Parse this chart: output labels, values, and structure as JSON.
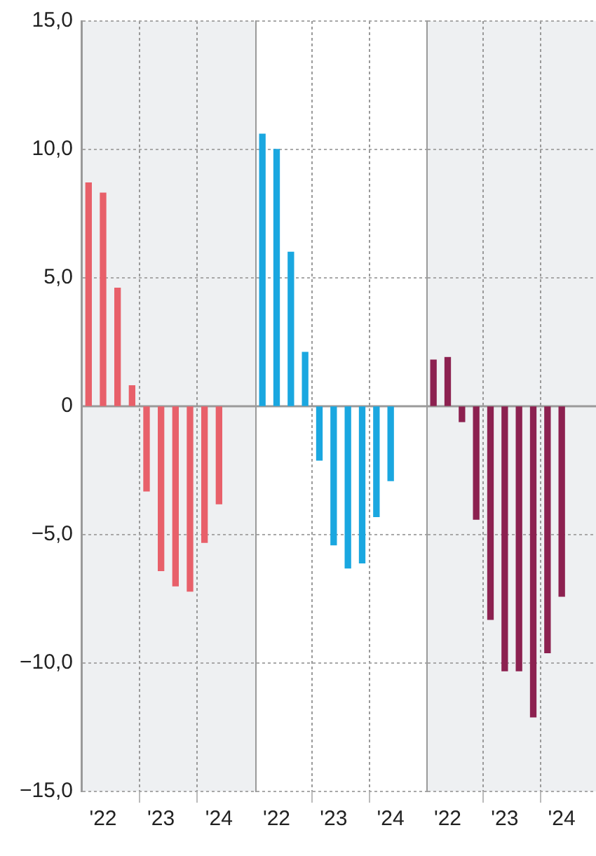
{
  "chart_data": [
    {
      "type": "bar",
      "categories": [
        null,
        "'22",
        null,
        null,
        null,
        "'23",
        null,
        null,
        null,
        "'24",
        null,
        null
      ],
      "series": [
        {
          "color": "#e8606a",
          "values": [
            8.7,
            8.3,
            4.6,
            0.8,
            -3.3,
            -6.4,
            -7.0,
            -7.2,
            -5.3,
            -3.8,
            null,
            null
          ]
        }
      ],
      "ylim": [
        -15,
        15
      ],
      "yticks": [
        {
          "value": -15,
          "label": "−15,0"
        },
        {
          "value": -10,
          "label": "−10,0"
        },
        {
          "value": -5,
          "label": "−5,0"
        },
        0,
        {
          "value": 5,
          "label": "5,0"
        },
        {
          "value": 10,
          "label": "10,0"
        },
        {
          "value": 15,
          "label": "15,0"
        }
      ],
      "grid": true,
      "ref_lines": [
        {
          "axis": "y",
          "value": 0,
          "color": "#9a9a9a"
        }
      ]
    },
    {
      "type": "bar",
      "categories": [
        null,
        "'22",
        null,
        null,
        null,
        "'23",
        null,
        null,
        null,
        "'24",
        null,
        null
      ],
      "series": [
        {
          "color": "#1aa7e0",
          "values": [
            10.6,
            10.0,
            6.0,
            2.1,
            -2.1,
            -5.4,
            -6.3,
            -6.1,
            -4.3,
            -2.9,
            null,
            null
          ]
        }
      ],
      "ylim": [
        -15,
        15
      ],
      "yticks": [
        -15,
        -10,
        -5,
        0,
        5,
        10,
        15
      ],
      "grid": true,
      "tick_labels": "x",
      "ref_lines": [
        {
          "axis": "y",
          "value": 0,
          "color": "#9a9a9a"
        }
      ]
    },
    {
      "type": "bar",
      "categories": [
        null,
        "'22",
        null,
        null,
        null,
        "'23",
        null,
        null,
        null,
        "'24",
        null,
        null
      ],
      "series": [
        {
          "color": "#8c2150",
          "values": [
            1.8,
            1.9,
            -0.6,
            -4.4,
            -8.3,
            -10.3,
            -10.3,
            -12.1,
            -9.6,
            -7.4,
            null,
            null
          ]
        }
      ],
      "ylim": [
        -15,
        15
      ],
      "yticks": [
        -15,
        -10,
        -5,
        0,
        5,
        10,
        15
      ],
      "grid": true,
      "tick_labels": "x",
      "ref_lines": [
        {
          "axis": "y",
          "value": 0,
          "color": "#9a9a9a"
        }
      ]
    }
  ]
}
